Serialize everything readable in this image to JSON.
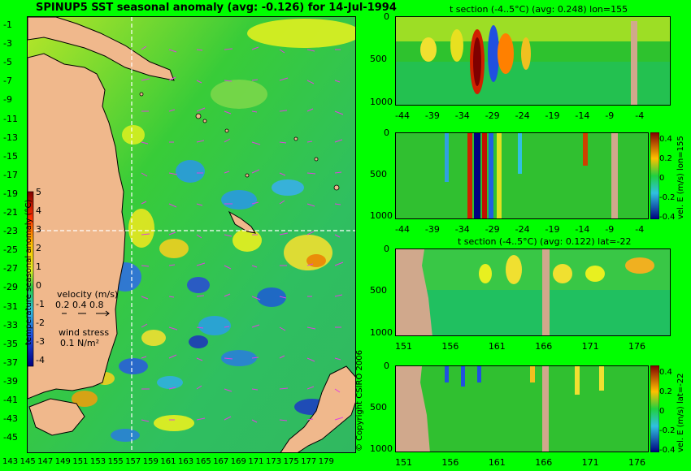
{
  "map": {
    "title": "SPINUP5 SST seasonal anomaly (avg: -0.126) for 14-Jul-1994",
    "lat_ticks": [
      "-1",
      "-3",
      "-5",
      "-7",
      "-9",
      "-11",
      "-13",
      "-15",
      "-17",
      "-19",
      "-21",
      "-23",
      "-25",
      "-27",
      "-29",
      "-31",
      "-33",
      "-35",
      "-37",
      "-39",
      "-41",
      "-43",
      "-45"
    ],
    "lon_ticks": [
      "143",
      "145",
      "147",
      "149",
      "151",
      "153",
      "155",
      "157",
      "159",
      "161",
      "163",
      "165",
      "167",
      "169",
      "171",
      "173",
      "175",
      "177",
      "179"
    ],
    "colorbar_ticks": [
      "5",
      "4",
      "3",
      "2",
      "1",
      "0",
      "-1",
      "-2",
      "-3",
      "-4"
    ],
    "colorbar_label": "temperature seasonal anomaly (°C)",
    "velocity_label": "velocity (m/s)",
    "velocity_scale": "0.2 0.4 0.8",
    "wind_label": "wind stress",
    "wind_scale": "0.1 N/m²",
    "copyright": "© Copyright CSIRO 2006"
  },
  "panels": {
    "p1": {
      "title": "t section (-4..5°C) (avg: 0.248) lon=155",
      "y_ticks": [
        "0",
        "500",
        "1000"
      ],
      "x_ticks": [
        "-44",
        "-39",
        "-34",
        "-29",
        "-24",
        "-19",
        "-14",
        "-9",
        "-4"
      ]
    },
    "p2": {
      "y_ticks": [
        "0",
        "500",
        "1000"
      ],
      "x_ticks": [
        "-44",
        "-39",
        "-34",
        "-29",
        "-24",
        "-19",
        "-14",
        "-9",
        "-4"
      ],
      "cb_ticks": [
        "0.4",
        "0.2",
        "0",
        "-0.2",
        "-0.4"
      ],
      "cb_label": "vel. E (m/s) lon=155"
    },
    "p3": {
      "title": "t section (-4..5°C) (avg: 0.122) lat=-22",
      "y_ticks": [
        "0",
        "500",
        "1000"
      ],
      "x_ticks": [
        "151",
        "156",
        "161",
        "166",
        "171",
        "176"
      ]
    },
    "p4": {
      "y_ticks": [
        "0",
        "500",
        "1000"
      ],
      "x_ticks": [
        "151",
        "156",
        "161",
        "166",
        "171",
        "176"
      ],
      "cb_ticks": [
        "0.4",
        "0.2",
        "0",
        "-0.2",
        "-0.4"
      ],
      "cb_label": "vel. E (m/s) lat=-22"
    }
  }
}
